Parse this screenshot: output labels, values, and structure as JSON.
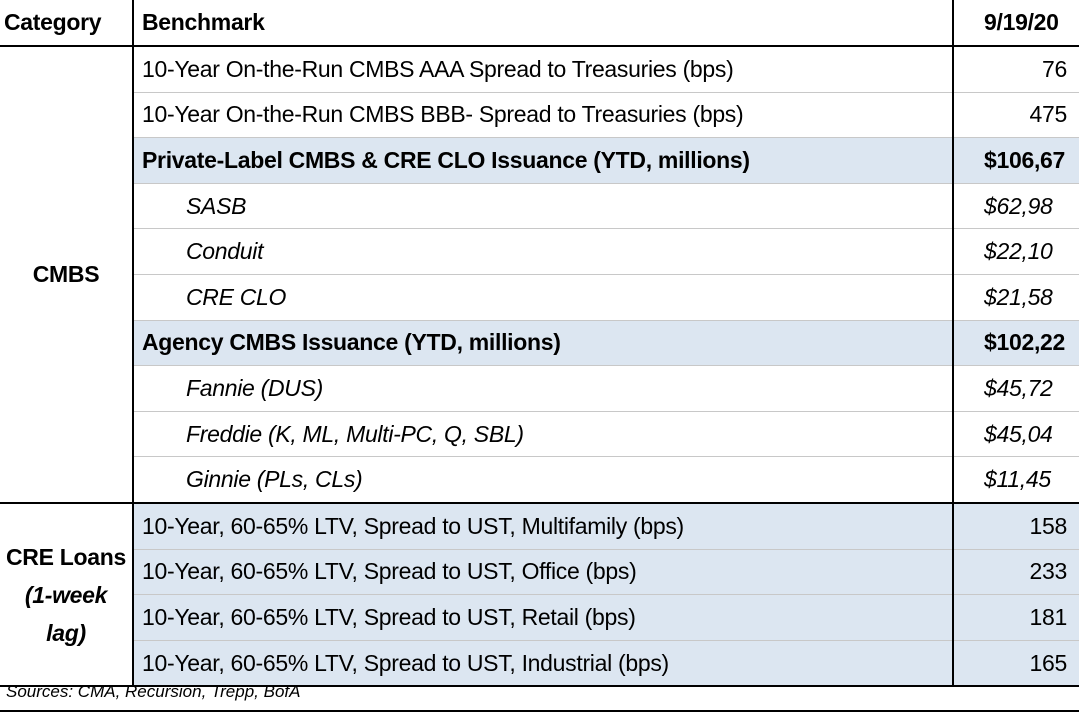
{
  "header": {
    "category": "Category",
    "benchmark": "Benchmark",
    "date": "9/19/20"
  },
  "cmbs": {
    "label": "CMBS",
    "rows": [
      {
        "benchmark": "10-Year On-the-Run CMBS AAA Spread to Treasuries (bps)",
        "value": 76
      },
      {
        "benchmark": "10-Year On-the-Run CMBS BBB- Spread to Treasuries (bps)",
        "value": 475
      },
      {
        "benchmark": "Private-Label CMBS & CRE CLO Issuance (YTD, millions)",
        "value": "$106,67"
      },
      {
        "benchmark": "SASB",
        "value": "$62,98"
      },
      {
        "benchmark": "Conduit",
        "value": "$22,10"
      },
      {
        "benchmark": "CRE CLO",
        "value": "$21,58"
      },
      {
        "benchmark": "Agency CMBS Issuance (YTD, millions)",
        "value": "$102,22"
      },
      {
        "benchmark": "Fannie (DUS)",
        "value": "$45,72"
      },
      {
        "benchmark": "Freddie (K, ML, Multi-PC, Q, SBL)",
        "value": "$45,04"
      },
      {
        "benchmark": "Ginnie (PLs, CLs)",
        "value": "$11,45"
      }
    ]
  },
  "cre_loans": {
    "label": "CRE Loans",
    "note": "(1-week lag)",
    "rows": [
      {
        "benchmark": "10-Year, 60-65% LTV, Spread to UST, Multifamily (bps)",
        "value": 158
      },
      {
        "benchmark": "10-Year, 60-65% LTV, Spread to UST, Office (bps)",
        "value": 233
      },
      {
        "benchmark": "10-Year, 60-65% LTV, Spread to UST, Retail (bps)",
        "value": 181
      },
      {
        "benchmark": "10-Year, 60-65% LTV, Spread to UST, Industrial (bps)",
        "value": 165
      }
    ]
  },
  "footer": "Sources: CMA, Recursion, Trepp, BofA"
}
